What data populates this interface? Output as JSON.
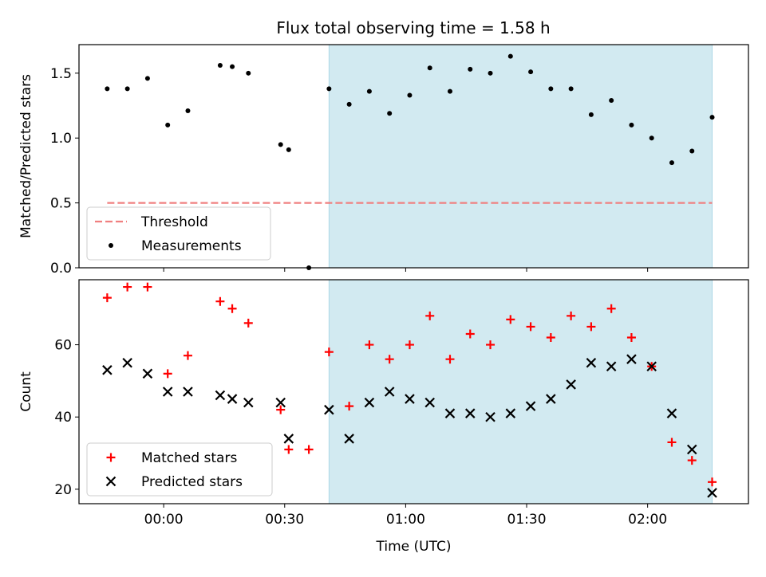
{
  "title": "Flux total observing time = 1.58 h",
  "colors": {
    "shade": "#add8e6",
    "threshold": "#f08080",
    "measurement": "#000000",
    "matched": "#ff0000",
    "predicted": "#000000"
  },
  "chart_data": [
    {
      "type": "scatter",
      "panel": "top",
      "title": "Flux total observing time = 1.58 h",
      "xlabel": "",
      "ylabel": "Matched/Predicted stars",
      "xlim": [
        "23:39",
        "02:25"
      ],
      "ylim": [
        0,
        1.72
      ],
      "yticks": [
        "0.0",
        "0.5",
        "1.0",
        "1.5"
      ],
      "shaded_interval": [
        "00:41",
        "02:16"
      ],
      "legend_position": "lower-left",
      "series": [
        {
          "name": "Threshold",
          "kind": "dashed-line",
          "x": [
            "23:46",
            "02:16"
          ],
          "y": [
            0.5,
            0.5
          ]
        },
        {
          "name": "Measurements",
          "kind": "point",
          "x": [
            "23:46",
            "23:51",
            "23:56",
            "00:01",
            "00:06",
            "00:14",
            "00:17",
            "00:21",
            "00:29",
            "00:31",
            "00:36",
            "00:41",
            "00:46",
            "00:51",
            "00:56",
            "01:01",
            "01:06",
            "01:11",
            "01:16",
            "01:21",
            "01:26",
            "01:31",
            "01:36",
            "01:41",
            "01:46",
            "01:51",
            "01:56",
            "02:01",
            "02:06",
            "02:11",
            "02:16"
          ],
          "y": [
            1.38,
            1.38,
            1.46,
            1.1,
            1.21,
            1.56,
            1.55,
            1.5,
            0.95,
            0.91,
            0.0,
            1.38,
            1.26,
            1.36,
            1.19,
            1.33,
            1.54,
            1.36,
            1.53,
            1.5,
            1.63,
            1.51,
            1.38,
            1.38,
            1.18,
            1.29,
            1.1,
            1.0,
            0.81,
            0.9,
            1.16
          ]
        }
      ]
    },
    {
      "type": "scatter",
      "panel": "bottom",
      "xlabel": "Time (UTC)",
      "ylabel": "Count",
      "xlim": [
        "23:39",
        "02:25"
      ],
      "ylim": [
        16,
        78
      ],
      "xticks": [
        "00:00",
        "00:30",
        "01:00",
        "01:30",
        "02:00"
      ],
      "yticks": [
        "20",
        "40",
        "60"
      ],
      "shaded_interval": [
        "00:41",
        "02:16"
      ],
      "legend_position": "lower-left",
      "series": [
        {
          "name": "Matched stars",
          "marker": "plus",
          "x": [
            "23:46",
            "23:51",
            "23:56",
            "00:01",
            "00:06",
            "00:14",
            "00:17",
            "00:21",
            "00:29",
            "00:31",
            "00:36",
            "00:41",
            "00:46",
            "00:51",
            "00:56",
            "01:01",
            "01:06",
            "01:11",
            "01:16",
            "01:21",
            "01:26",
            "01:31",
            "01:36",
            "01:41",
            "01:46",
            "01:51",
            "01:56",
            "02:01",
            "02:06",
            "02:11",
            "02:16"
          ],
          "y": [
            73,
            76,
            76,
            52,
            57,
            72,
            70,
            66,
            42,
            31,
            31,
            58,
            43,
            60,
            56,
            60,
            68,
            56,
            63,
            60,
            67,
            65,
            62,
            68,
            65,
            70,
            62,
            54,
            33,
            28,
            22
          ]
        },
        {
          "name": "Predicted stars",
          "marker": "x",
          "x": [
            "23:46",
            "23:51",
            "23:56",
            "00:01",
            "00:06",
            "00:14",
            "00:17",
            "00:21",
            "00:29",
            "00:31",
            "00:41",
            "00:46",
            "00:51",
            "00:56",
            "01:01",
            "01:06",
            "01:11",
            "01:16",
            "01:21",
            "01:26",
            "01:31",
            "01:36",
            "01:41",
            "01:46",
            "01:51",
            "01:56",
            "02:01",
            "02:06",
            "02:11",
            "02:16"
          ],
          "y": [
            53,
            55,
            52,
            47,
            47,
            46,
            45,
            44,
            44,
            34,
            42,
            34,
            44,
            47,
            45,
            44,
            41,
            41,
            40,
            41,
            43,
            45,
            49,
            55,
            54,
            56,
            54,
            41,
            31,
            19
          ]
        }
      ]
    }
  ]
}
